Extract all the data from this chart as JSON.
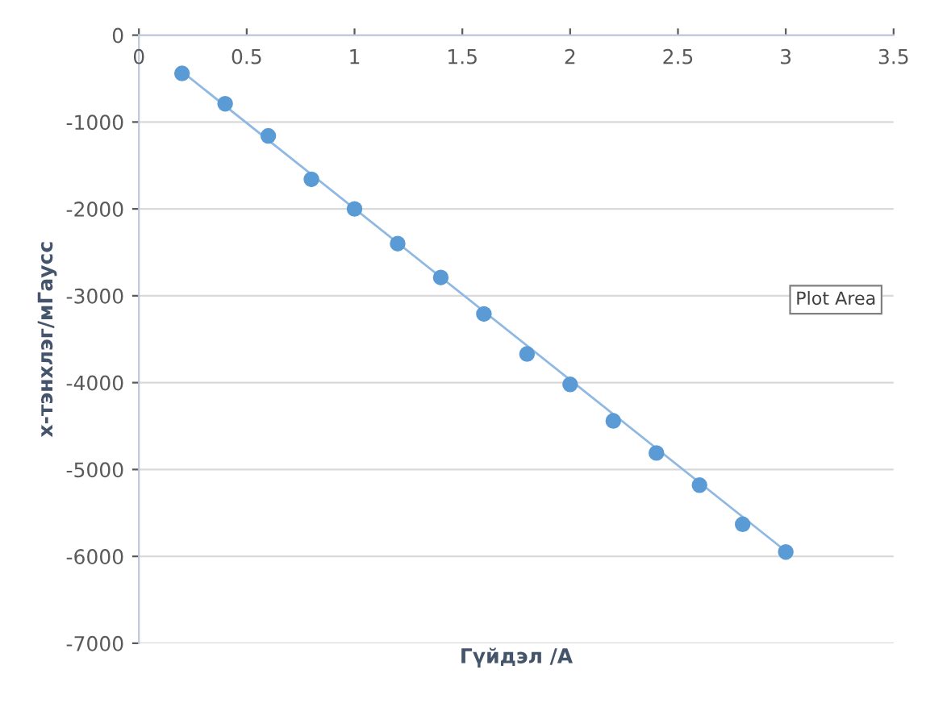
{
  "chart_data": {
    "type": "scatter",
    "xlabel": "Гүйдэл /A",
    "ylabel": "х-тэнхлэг/мГаусс",
    "series": [
      {
        "color": "#5b9bd5",
        "marker": "circle",
        "x": [
          0.2,
          0.4,
          0.6,
          0.8,
          1.0,
          1.2,
          1.4,
          1.6,
          1.8,
          2.0,
          2.2,
          2.4,
          2.6,
          2.8,
          3.0
        ],
        "values": [
          -440,
          -790,
          -1160,
          -1660,
          -2000,
          -2400,
          -2790,
          -3210,
          -3670,
          -4020,
          -4440,
          -4810,
          -5180,
          -5630,
          -5950
        ]
      },
      {
        "type": "line",
        "color": "#8fb9e3",
        "x": [
          0.2,
          3.0
        ],
        "values": [
          -420,
          -5940
        ]
      }
    ],
    "xlim": [
      0,
      3.5
    ],
    "xticks": [
      0,
      0.5,
      1,
      1.5,
      2,
      2.5,
      3,
      3.5
    ],
    "ylim": [
      -7000,
      0
    ],
    "yticks": [
      -7000,
      -6000,
      -5000,
      -4000,
      -3000,
      -2000,
      -1000,
      0
    ],
    "grid": "y",
    "annotations": [
      "Plot Area"
    ]
  }
}
